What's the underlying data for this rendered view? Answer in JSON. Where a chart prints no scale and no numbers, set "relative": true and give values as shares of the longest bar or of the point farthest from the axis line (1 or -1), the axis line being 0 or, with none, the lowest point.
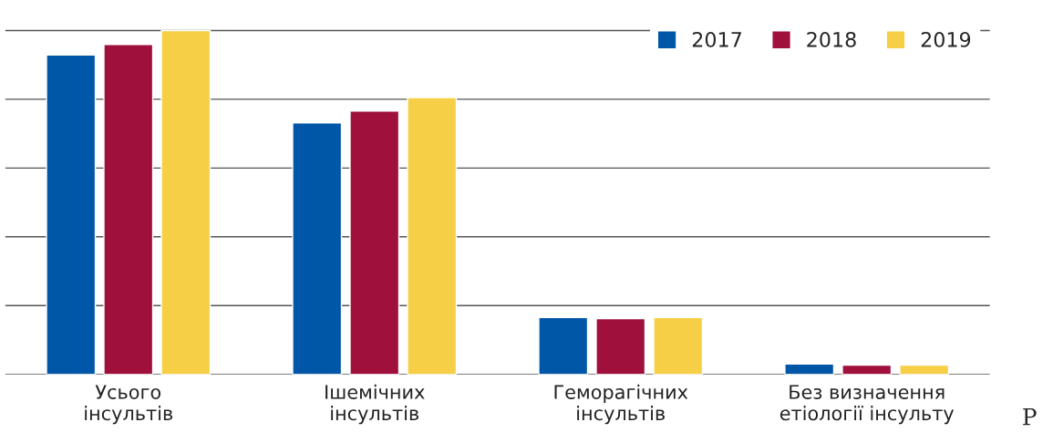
{
  "chart_data": {
    "type": "bar",
    "relative": true,
    "categories": [
      "Усього\nінсультів",
      "Ішемічних\nінсультів",
      "Геморагічних\nінсультів",
      "Без визначення\nетіології інсульту"
    ],
    "series": [
      {
        "name": "2017",
        "color": "#0057a8",
        "values": [
          0.929,
          0.731,
          0.165,
          0.03
        ]
      },
      {
        "name": "2018",
        "color": "#a0103c",
        "values": [
          0.959,
          0.766,
          0.162,
          0.027
        ]
      },
      {
        "name": "2019",
        "color": "#f7cf46",
        "values": [
          1,
          0.805,
          0.165,
          0.027
        ]
      }
    ],
    "grid": "y",
    "legend": "top right",
    "annotations": [
      "Р"
    ]
  }
}
